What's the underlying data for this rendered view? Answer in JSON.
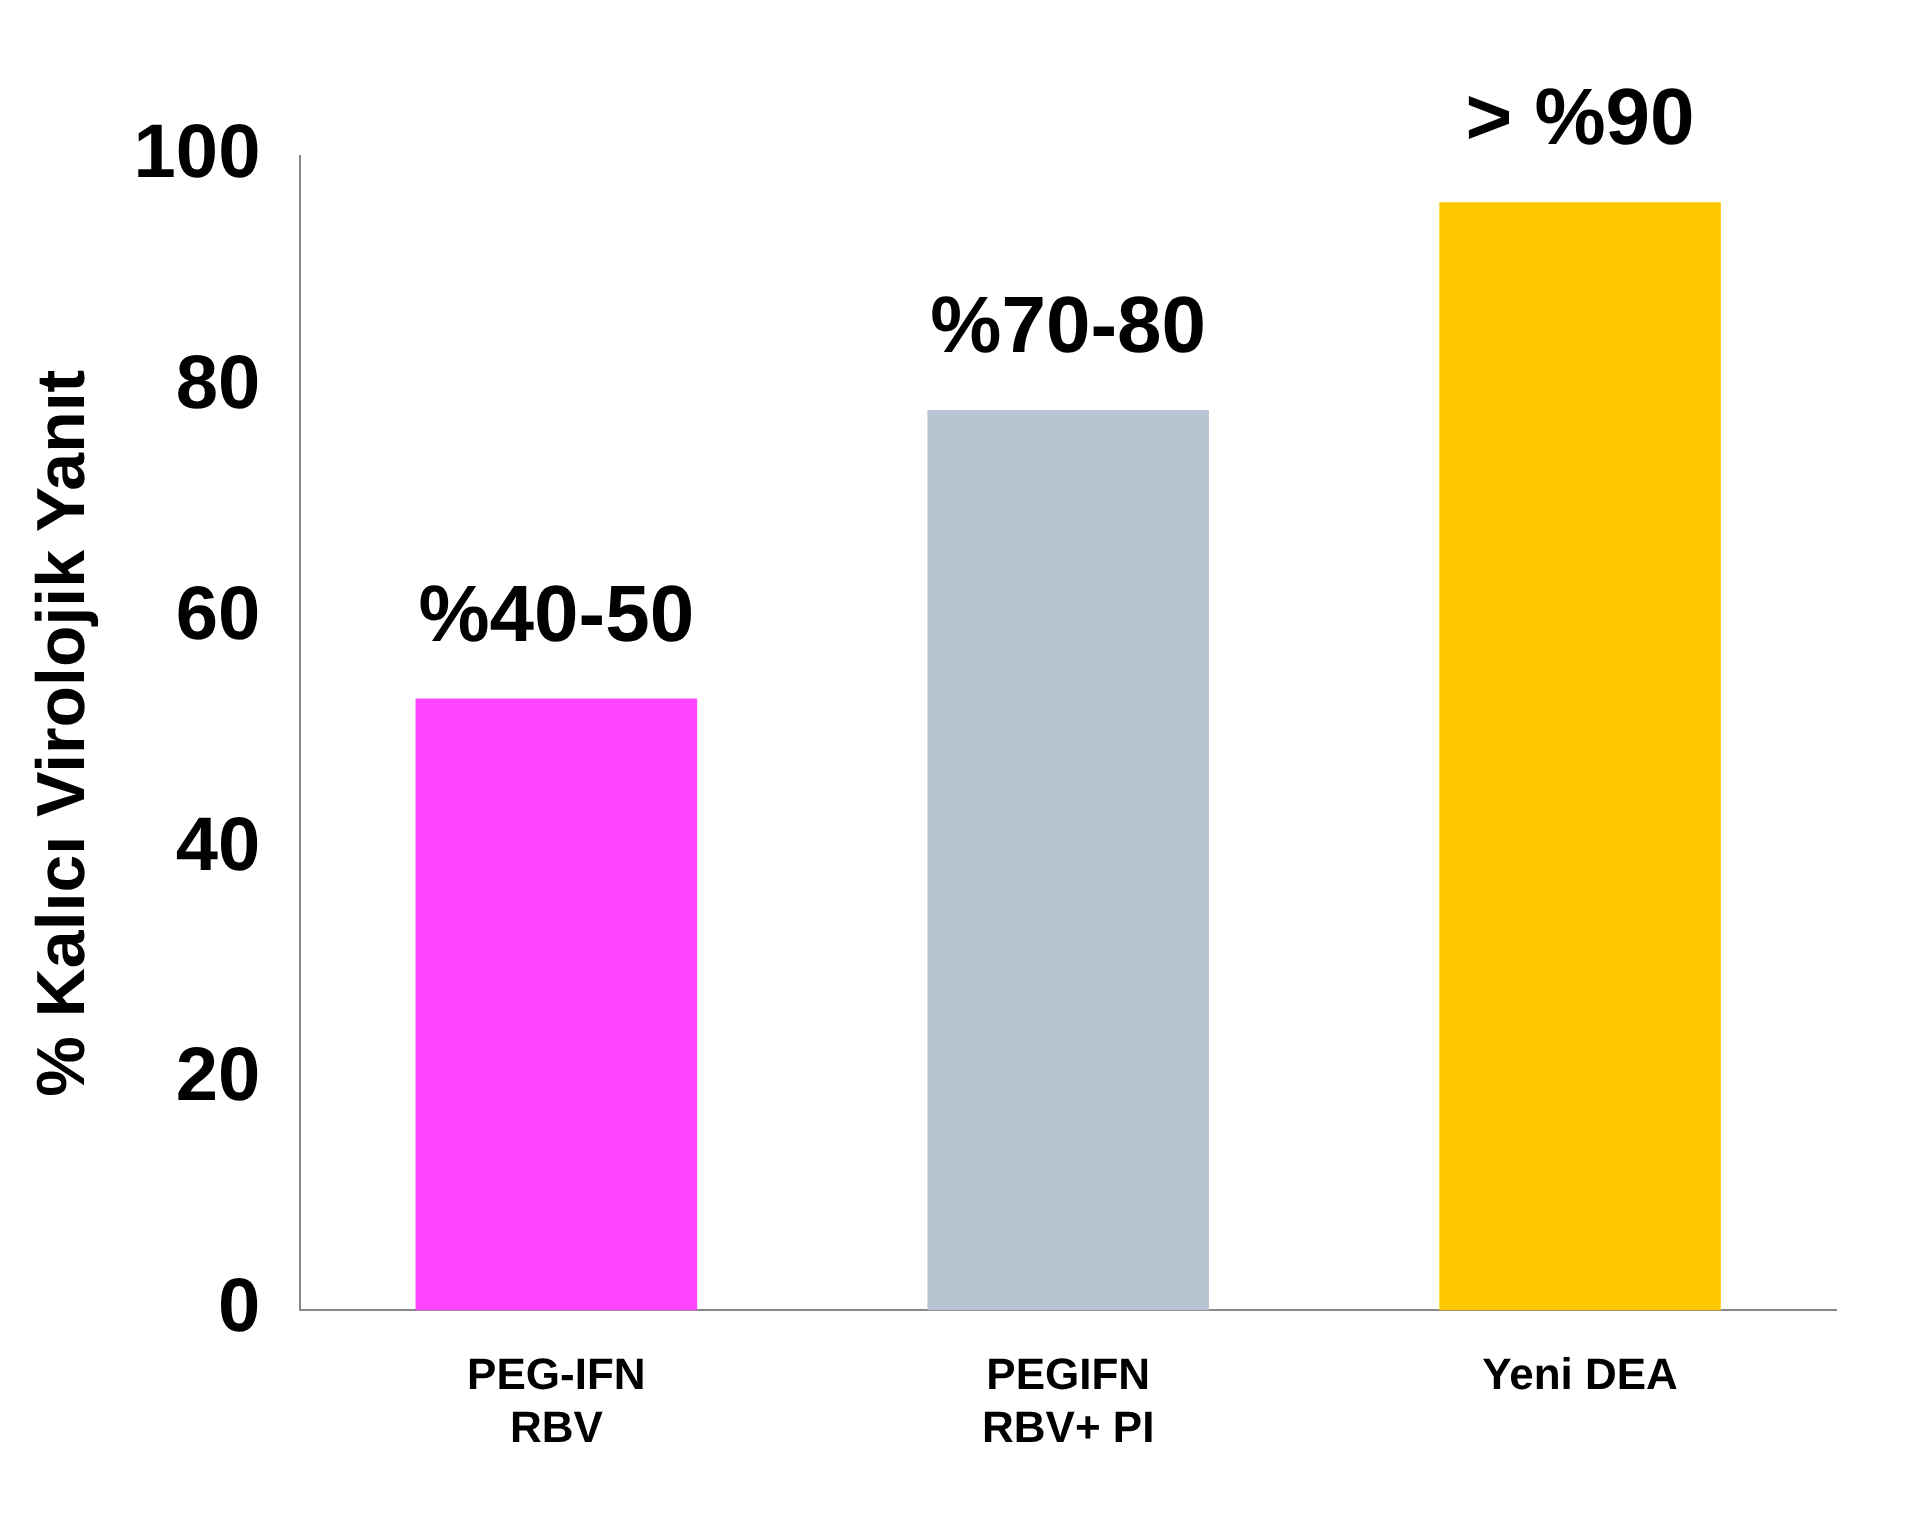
{
  "chart_data": {
    "type": "bar",
    "ylabel": "% Kalıcı Virolojik Yanıt",
    "categories": [
      "PEG-IFN\nRBV",
      "PEGIFN\nRBV+ PI",
      "Yeni DEA"
    ],
    "values": [
      53,
      78,
      96
    ],
    "colors": [
      "#ff44ff",
      "#b8c4d2",
      "#ffc800"
    ],
    "annotations": [
      {
        "text": "%40-50",
        "x": "PEG-IFN\nRBV",
        "y": 53
      },
      {
        "text": "%70-80",
        "x": "PEGIFN\nRBV+ PI",
        "y": 78
      },
      {
        "text": "> %90",
        "x": "Yeni DEA",
        "y": 96
      }
    ],
    "ylim": [
      0,
      100
    ],
    "yticks": [
      0,
      20,
      40,
      60,
      80,
      100
    ],
    "grid": false,
    "legend": false
  }
}
